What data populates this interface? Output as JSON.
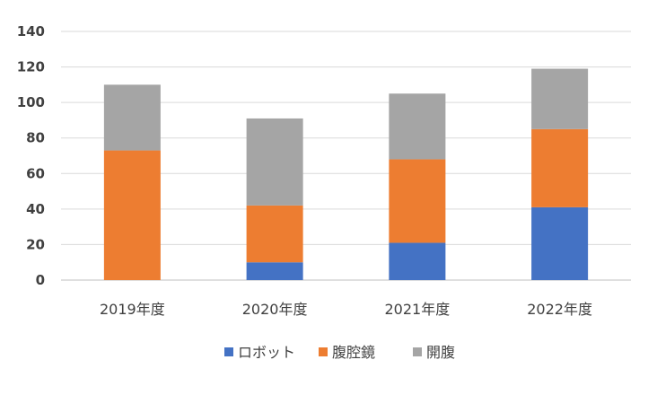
{
  "chart_data": {
    "type": "bar",
    "stacked": true,
    "categories": [
      "2019年度",
      "2020年度",
      "2021年度",
      "2022年度"
    ],
    "series": [
      {
        "name": "ロボット",
        "color": "#4472C4",
        "values": [
          0,
          10,
          21,
          41
        ]
      },
      {
        "name": "腹腔鏡",
        "color": "#ED7D31",
        "values": [
          73,
          32,
          47,
          44
        ]
      },
      {
        "name": "開腹",
        "color": "#A5A5A5",
        "values": [
          37,
          49,
          37,
          34
        ]
      }
    ],
    "yticks": [
      "0",
      "20",
      "40",
      "60",
      "80",
      "100",
      "120",
      "140"
    ],
    "ylim": [
      0,
      140
    ],
    "title": "",
    "xlabel": "",
    "ylabel": "",
    "grid": true,
    "gridline_color": "#D9D9D9",
    "legend_position": "bottom"
  }
}
